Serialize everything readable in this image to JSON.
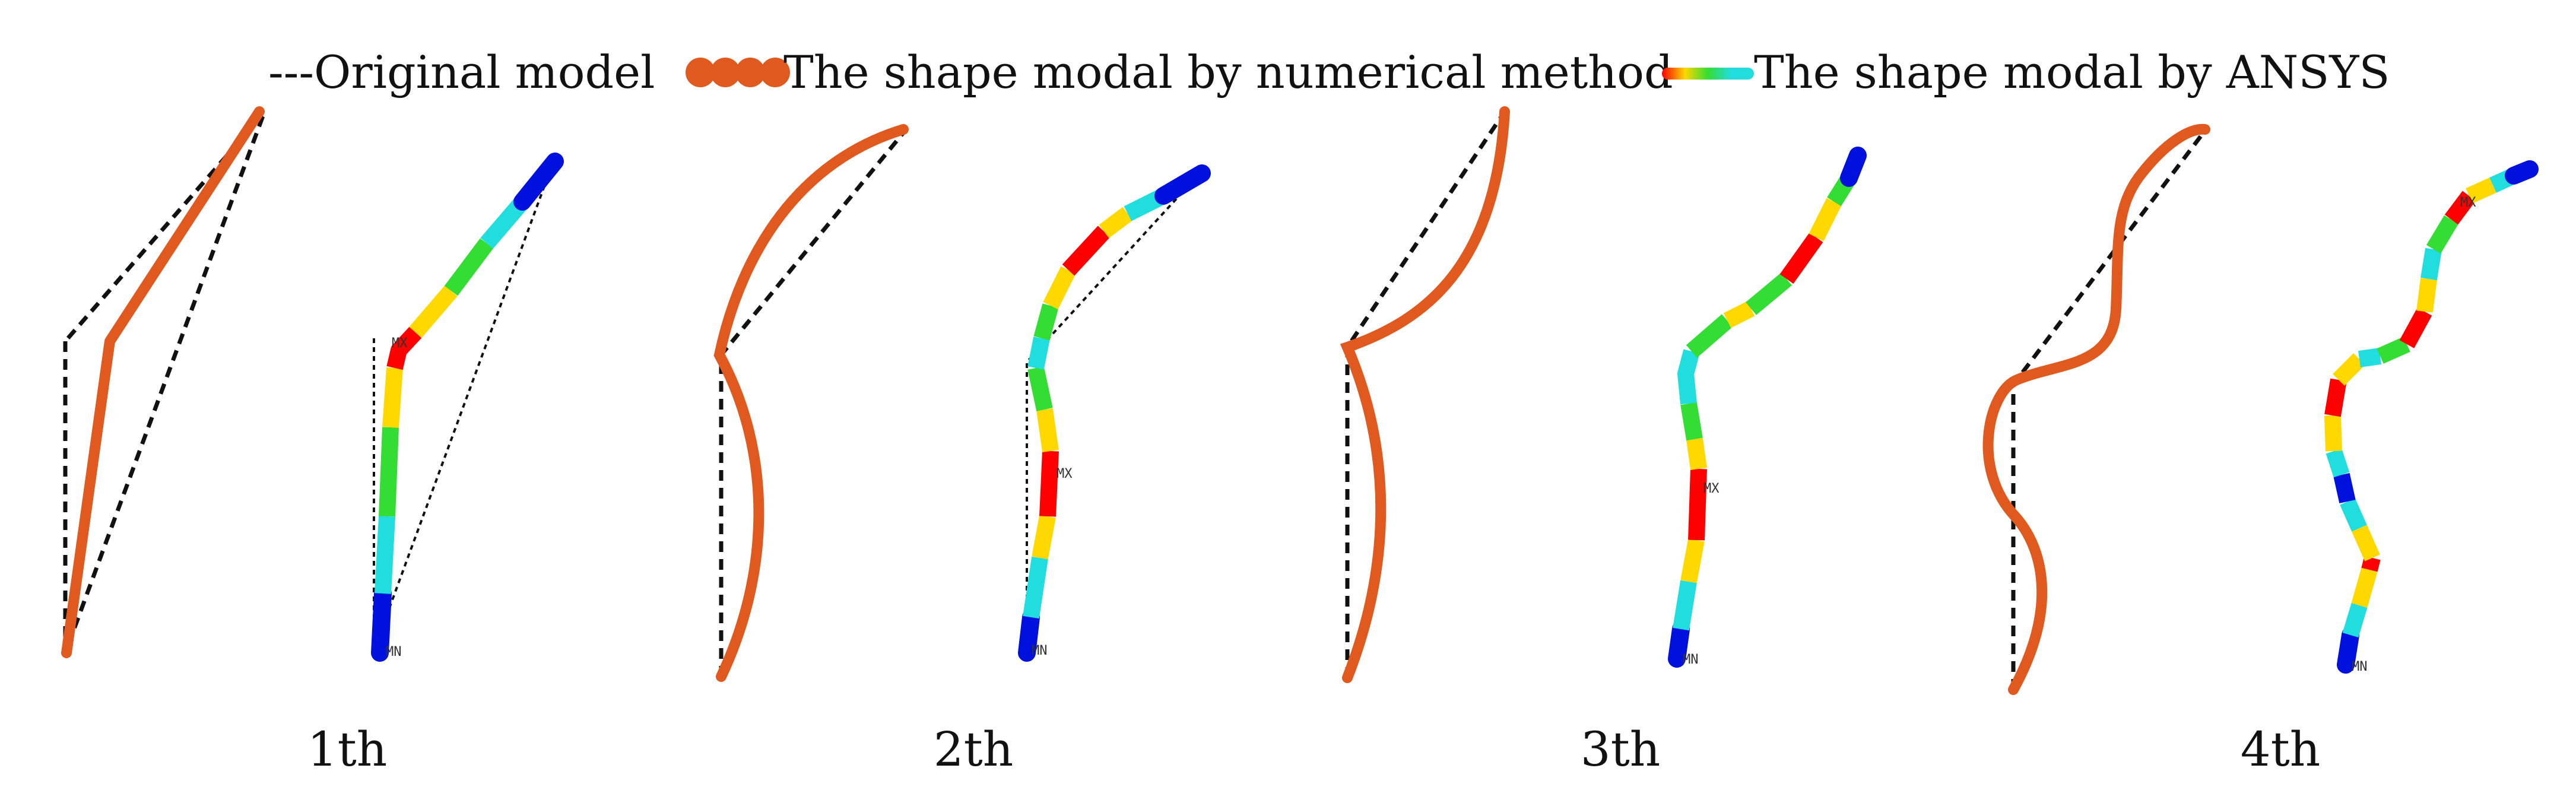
{
  "legend": {
    "original_label": "---Original model",
    "numerical_label": "The shape modal by numerical method",
    "ansys_label": "The shape modal by ANSYS"
  },
  "modes": [
    {
      "label": "1th",
      "tags": {
        "max": "MX",
        "min": "MN"
      }
    },
    {
      "label": "2th",
      "tags": {
        "max": "MX",
        "min": "MN"
      }
    },
    {
      "label": "3th",
      "tags": {
        "max": "MX",
        "min": "MN"
      }
    },
    {
      "label": "4th",
      "tags": {
        "max": "MX",
        "min": "MN"
      }
    }
  ],
  "colors": {
    "original_dash": "#111111",
    "numerical_marker": "#e05a20",
    "ansys_gradient": [
      "#ff0000",
      "#ffd800",
      "#33dd33",
      "#22dddd",
      "#0011dd"
    ]
  },
  "icons": {
    "numerical_marker": "filled-circles",
    "ansys_marker": "rainbow-gradient-bar"
  }
}
